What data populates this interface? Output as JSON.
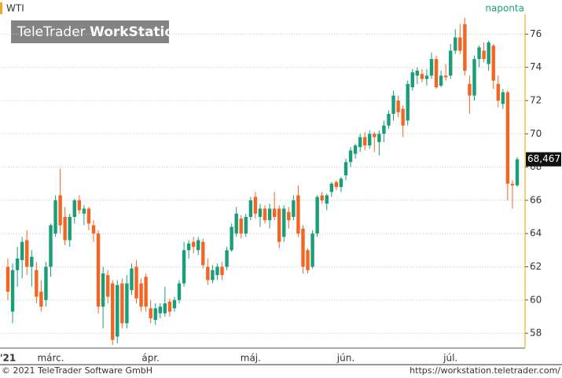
{
  "chart_data": {
    "type": "candlestick",
    "subtitle": "naponta",
    "watermark": {
      "brand": "TeleTrader",
      "product": "WorkStation"
    },
    "footer_left": "© 2021 TeleTrader Software GmbH",
    "footer_right": "https://workstation.teletrader.com/",
    "categories": [
      "'21",
      null,
      null,
      null,
      null,
      null,
      null,
      null,
      null,
      "márc.",
      null,
      null,
      null,
      null,
      null,
      null,
      null,
      null,
      null,
      null,
      null,
      null,
      null,
      null,
      null,
      null,
      null,
      null,
      null,
      null,
      "ápr.",
      null,
      null,
      null,
      null,
      null,
      null,
      null,
      null,
      null,
      null,
      null,
      null,
      null,
      null,
      null,
      null,
      null,
      null,
      null,
      null,
      "máj.",
      null,
      null,
      null,
      null,
      null,
      null,
      null,
      null,
      null,
      null,
      null,
      null,
      null,
      null,
      null,
      null,
      null,
      null,
      null,
      "jún.",
      null,
      null,
      null,
      null,
      null,
      null,
      null,
      null,
      null,
      null,
      null,
      null,
      null,
      null,
      null,
      null,
      null,
      null,
      null,
      null,
      null,
      "júl.",
      null,
      null,
      null,
      null,
      null,
      null,
      null,
      null,
      null,
      null,
      null,
      null,
      null,
      null
    ],
    "series": [
      {
        "name": "WTI",
        "up_color": "#1a9e7a",
        "down_color": "#f26522",
        "open": [
          62,
          59.3,
          61.8,
          62.4,
          63.6,
          62,
          61.8,
          60.5,
          60,
          62,
          64,
          66.3,
          65,
          63.6,
          65,
          66,
          65.2,
          65.5,
          64.5,
          64,
          59.6,
          61.5,
          61,
          57.8,
          61,
          58.6,
          60.6,
          62,
          61,
          61.4,
          59.5,
          58.8,
          59.2,
          59.2,
          59.9,
          59.5,
          60,
          61,
          63,
          63.5,
          63,
          63.5,
          62,
          61.2,
          61.5,
          62,
          62,
          63,
          64,
          64.9,
          64,
          65,
          66.2,
          65,
          65.5,
          64.8,
          65.5,
          65.5,
          63.8,
          65.3,
          65,
          66.3,
          64.3,
          63,
          62,
          64,
          66.3,
          65.8,
          66.5,
          67.1,
          66.8,
          67.5,
          68.3,
          68.8,
          69.2,
          69.8,
          69.3,
          70,
          69.5,
          70,
          70.5,
          71.2,
          72,
          71.5,
          70.8,
          72.8,
          73.5,
          73.6,
          73.3,
          73.5,
          74.5,
          72.9,
          73.5,
          73.5,
          75,
          75.8,
          76.6,
          73,
          72.3,
          74.5,
          75,
          74.2,
          75.3,
          73,
          71.8,
          72.5,
          67,
          66.9
        ],
        "high": [
          62.5,
          62.2,
          63.2,
          63.8,
          64.2,
          63,
          62.3,
          61.2,
          62.3,
          64.6,
          66.3,
          67.9,
          65.6,
          65.2,
          66.1,
          66.3,
          65.7,
          65.6,
          64.8,
          64.2,
          62,
          61.8,
          61.2,
          61.2,
          61.3,
          61.5,
          62.2,
          62.4,
          61.3,
          61.6,
          60,
          59.8,
          59.8,
          60.8,
          60.1,
          60.2,
          61.2,
          63.5,
          63.6,
          63.8,
          63.8,
          63.7,
          62.5,
          62.1,
          62.2,
          62.3,
          63.2,
          64.6,
          65.6,
          65.1,
          65.2,
          66.2,
          66.5,
          65.8,
          65.7,
          65.8,
          66.5,
          65.7,
          65.7,
          65.6,
          66.3,
          66.9,
          64.5,
          63.1,
          64.2,
          66.3,
          66.5,
          66.4,
          67.1,
          67.2,
          67.4,
          68.5,
          69.2,
          69.4,
          70,
          70.1,
          70.2,
          70.1,
          70.2,
          70.8,
          71.4,
          72.6,
          72.3,
          71.7,
          73.2,
          73.9,
          74,
          73.9,
          73.9,
          74.9,
          74.7,
          73.8,
          74.2,
          75.4,
          76.3,
          76.6,
          76.98,
          73.5,
          74.7,
          75.3,
          75.5,
          75.6,
          75.4,
          73.5,
          72.7,
          72.6,
          67.2,
          68.6
        ],
        "low": [
          60,
          58.6,
          60.8,
          61.3,
          61.5,
          60.8,
          59.8,
          59.3,
          59.6,
          61.4,
          63.8,
          64,
          63.3,
          63.2,
          64.6,
          65.2,
          64.5,
          64.2,
          63.5,
          59.2,
          58.3,
          59.8,
          57.3,
          57.4,
          58.3,
          58.3,
          60.3,
          59.8,
          59.3,
          59.3,
          58.6,
          58.5,
          58.9,
          59,
          59,
          59.3,
          59.8,
          60.8,
          62.5,
          62.8,
          62.7,
          61.9,
          60.9,
          61,
          61.2,
          61.2,
          61.8,
          62.9,
          63.8,
          63.7,
          63.8,
          64.8,
          64.9,
          64.4,
          64.6,
          64.3,
          64.8,
          63.1,
          63.5,
          64.3,
          64.8,
          63.8,
          61.6,
          61.6,
          61.9,
          63.8,
          65.8,
          65.4,
          66.2,
          66.6,
          66.5,
          67.2,
          68,
          68.5,
          68.9,
          69,
          69.1,
          68.9,
          68.7,
          69.5,
          70.3,
          70.8,
          71,
          69.8,
          70.5,
          72.6,
          73,
          73.1,
          72.9,
          73.3,
          72.7,
          72.8,
          73.2,
          73.3,
          74.8,
          74.8,
          73.5,
          71.2,
          72,
          74,
          74.3,
          73.8,
          72.7,
          71.6,
          71.5,
          66,
          65.5,
          66.8
        ],
        "close": [
          60.5,
          61.8,
          62.5,
          63.5,
          62,
          62.6,
          60.2,
          59.6,
          62,
          64.5,
          66,
          64.5,
          63.6,
          65,
          66,
          65.4,
          65.5,
          64.6,
          64,
          59.6,
          61.6,
          60.2,
          57.6,
          60.9,
          58.6,
          61,
          61.9,
          60.1,
          59.6,
          59.6,
          58.9,
          59.5,
          59.6,
          59.8,
          59.3,
          60,
          61,
          63,
          63.4,
          63.2,
          63.6,
          62.1,
          61.2,
          61.8,
          62,
          61.5,
          63,
          64.4,
          65.2,
          64,
          65,
          66,
          65.2,
          65.5,
          64.8,
          65.5,
          65,
          63.5,
          65.5,
          64.8,
          66,
          64,
          62,
          61.8,
          64,
          66.2,
          66,
          66.3,
          67,
          66.8,
          67.3,
          68.3,
          69,
          69.3,
          69.8,
          69.3,
          70,
          69.8,
          70,
          70.5,
          71.2,
          72.3,
          71.3,
          70.5,
          73,
          73.7,
          73.8,
          73.3,
          73.5,
          74.5,
          72.8,
          73.5,
          73.4,
          75,
          75.8,
          75,
          73.8,
          72.3,
          74.5,
          75.2,
          74.5,
          75.5,
          73.2,
          72,
          72.5,
          67,
          66.9,
          68.467
        ]
      }
    ],
    "last_value": {
      "value": 68.467,
      "label": "68,467"
    },
    "ylim": [
      57.2,
      77.2
    ],
    "yticks": [
      58,
      60,
      62,
      64,
      66,
      68,
      70,
      72,
      74,
      76
    ],
    "grid": true
  }
}
